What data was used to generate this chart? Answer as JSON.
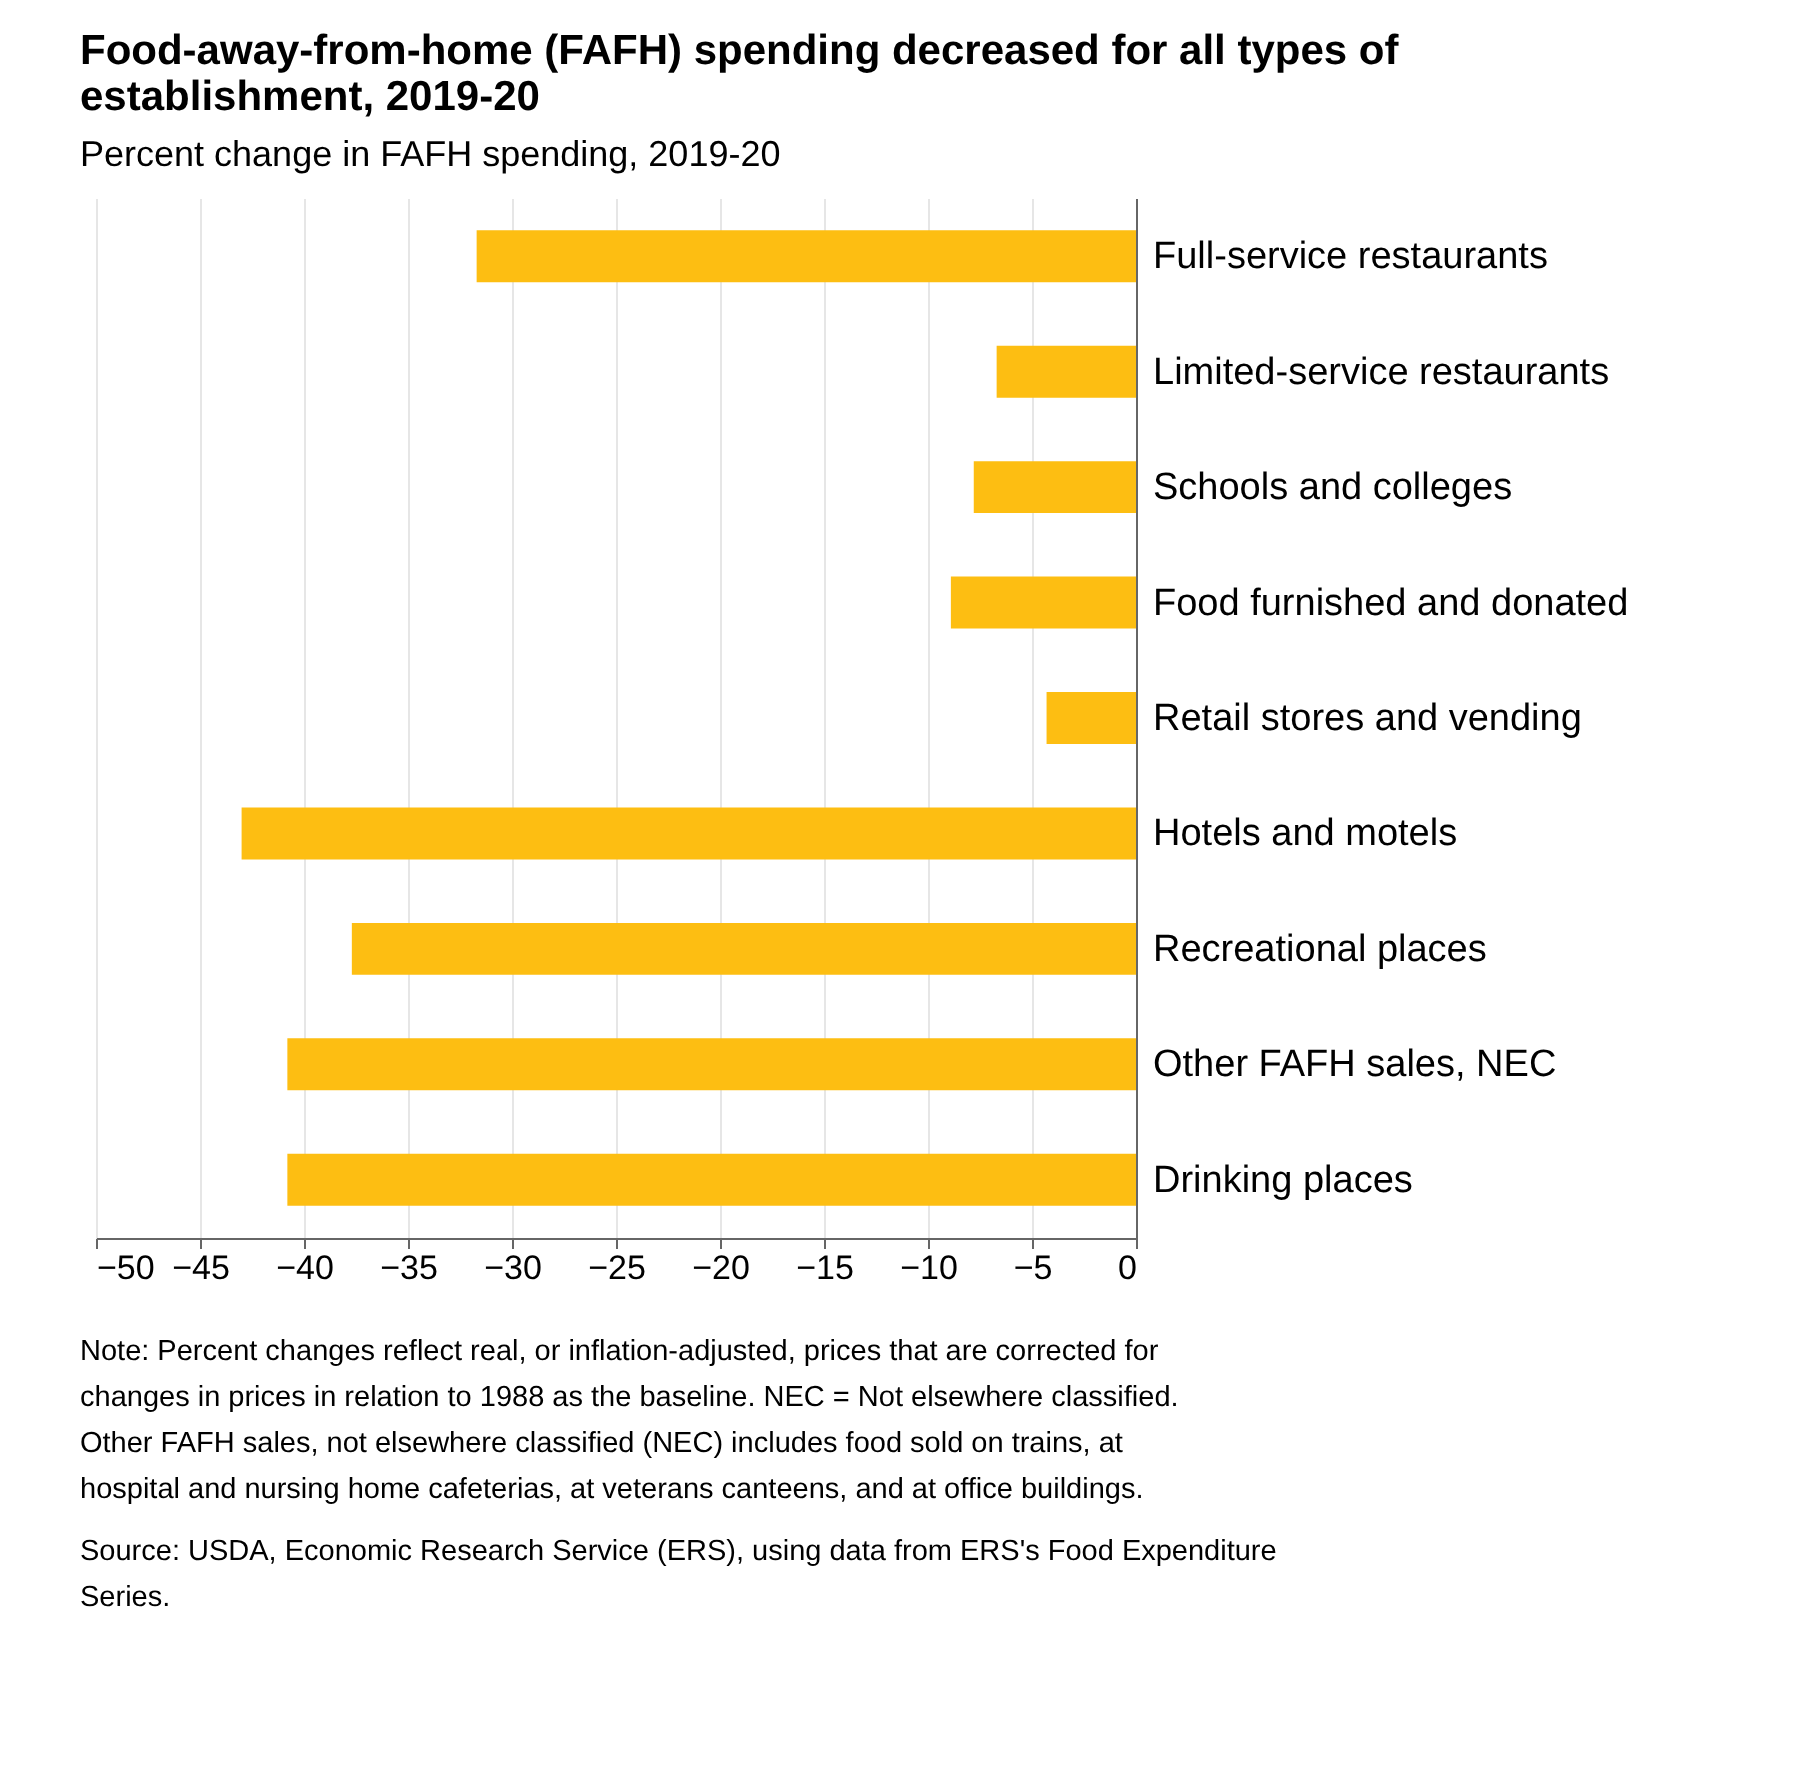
{
  "chart_data": {
    "type": "bar",
    "orientation": "horizontal",
    "title": "Food-away-from-home (FAFH) spending decreased for all types of establishment, 2019-20",
    "subtitle": "Percent change in FAFH spending, 2019-20",
    "categories": [
      "Full-service restaurants",
      "Limited-service restaurants",
      "Schools and colleges",
      "Food furnished and donated",
      "Retail stores and vending",
      "Hotels and motels",
      "Recreational places",
      "Other FAFH sales, NEC",
      "Drinking places"
    ],
    "values": [
      -31.7,
      -6.7,
      -7.8,
      -8.9,
      -4.3,
      -43.0,
      -37.7,
      -40.8,
      -40.8
    ],
    "color": "#fdbe12",
    "xlim": [
      -50,
      0
    ],
    "xticks": [
      -50,
      -45,
      -40,
      -35,
      -30,
      -25,
      -20,
      -15,
      -10,
      -5,
      0
    ],
    "grid": "x",
    "annotations": [
      "Note: Percent changes reflect real, or inflation-adjusted, prices that are corrected for changes in prices in relation to 1988 as the baseline. NEC = Not elsewhere classified. Other FAFH sales, not elsewhere classified (NEC) includes food sold on trains, at hospital and nursing home cafeterias, at veterans canteens, and at office buildings.",
      "Source: USDA, Economic Research Service (ERS), using data from ERS's Food Expenditure Series."
    ]
  }
}
